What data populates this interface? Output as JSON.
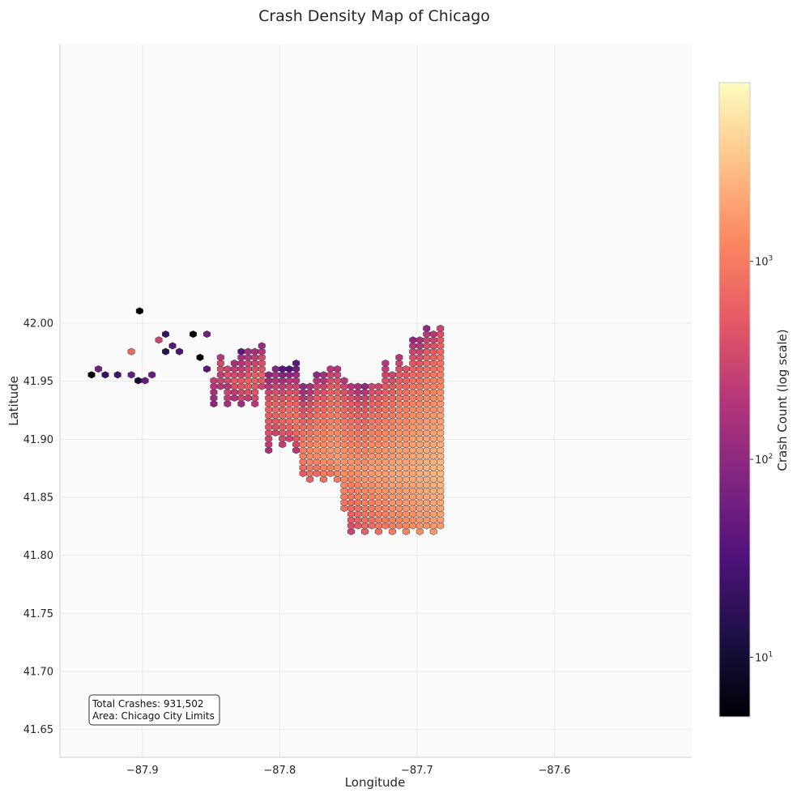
{
  "chart_data": {
    "type": "heatmap",
    "subtype": "hexbin",
    "title": "Crash Density Map of Chicago",
    "xlabel": "Longitude",
    "ylabel": "Latitude",
    "xlim": [
      -87.96,
      -87.5
    ],
    "ylim": [
      41.626,
      42.24
    ],
    "x_ticks": [
      -87.9,
      -87.8,
      -87.7,
      -87.6
    ],
    "x_tick_labels": [
      "−87.9",
      "−87.8",
      "−87.7",
      "−87.6"
    ],
    "y_ticks": [
      41.65,
      41.7,
      41.75,
      41.8,
      41.85,
      41.9,
      41.95,
      42.0
    ],
    "y_tick_labels": [
      "41.65",
      "41.70",
      "41.75",
      "41.80",
      "41.85",
      "41.90",
      "41.95",
      "42.00"
    ],
    "grid": true,
    "colormap": "magma",
    "color_scale": "log",
    "colorbar": {
      "label": "Crash Count (log scale)",
      "range": [
        5,
        8000
      ],
      "ticks": [
        10,
        100,
        1000
      ],
      "tick_bases": [
        "10",
        "10",
        "10"
      ],
      "tick_exps": [
        "1",
        "2",
        "3"
      ]
    },
    "annotation": {
      "line1": "Total Crashes: 931,502",
      "line2": "Area: Chicago City Limits"
    },
    "hex_columns": [
      {
        "x": -87.937,
        "y_start": 41.9555,
        "counts": [
          5
        ]
      },
      {
        "x": -87.932,
        "y_start": 41.9605,
        "counts": [
          60
        ]
      },
      {
        "x": -87.927,
        "y_start": 41.9555,
        "counts": [
          20
        ]
      },
      {
        "x": -87.918,
        "y_start": 41.9555,
        "counts": [
          25
        ]
      },
      {
        "x": -87.908,
        "y_start": 41.9555,
        "counts": [
          50
        ]
      },
      {
        "x": -87.908,
        "y_start": 41.9755,
        "counts": [
          700
        ]
      },
      {
        "x": -87.903,
        "y_start": 41.9505,
        "counts": [
          10
        ]
      },
      {
        "x": -87.902,
        "y_start": 42.0105,
        "counts": [
          5
        ]
      },
      {
        "x": -87.898,
        "y_start": 41.9505,
        "counts": [
          50
        ]
      },
      {
        "x": -87.893,
        "y_start": 41.9555,
        "counts": [
          50
        ]
      },
      {
        "x": -87.888,
        "y_start": 41.9855,
        "counts": [
          300
        ]
      },
      {
        "x": -87.883,
        "y_start": 41.9755,
        "counts": [
          15
        ]
      },
      {
        "x": -87.883,
        "y_start": 41.9905,
        "counts": [
          20
        ]
      },
      {
        "x": -87.878,
        "y_start": 41.9805,
        "counts": [
          40
        ]
      },
      {
        "x": -87.873,
        "y_start": 41.9755,
        "counts": [
          30
        ]
      },
      {
        "x": -87.863,
        "y_start": 41.9905,
        "counts": [
          5
        ]
      },
      {
        "x": -87.858,
        "y_start": 41.9705,
        "counts": [
          5
        ]
      },
      {
        "x": -87.853,
        "y_start": 41.9905,
        "counts": [
          60
        ]
      },
      {
        "x": -87.853,
        "y_start": 41.9605,
        "counts": [
          40
        ]
      },
      {
        "x": -87.848,
        "y_start": 41.9305,
        "counts": [
          90,
          120,
          150,
          200,
          250
        ]
      },
      {
        "x": -87.843,
        "y_start": 41.9455,
        "counts": [
          200,
          300,
          250,
          400,
          350,
          200
        ]
      },
      {
        "x": -87.838,
        "y_start": 41.9305,
        "counts": [
          150,
          250,
          300,
          200,
          350,
          400,
          300
        ]
      },
      {
        "x": -87.833,
        "y_start": 41.9355,
        "counts": [
          180,
          220,
          400,
          500,
          350,
          250,
          150
        ]
      },
      {
        "x": -87.828,
        "y_start": 41.9305,
        "counts": [
          120,
          300,
          350,
          450,
          500,
          300,
          250,
          200,
          150,
          40
        ]
      },
      {
        "x": -87.823,
        "y_start": 41.9355,
        "counts": [
          250,
          400,
          500,
          600,
          450,
          350,
          300,
          200,
          150
        ]
      },
      {
        "x": -87.818,
        "y_start": 41.9305,
        "counts": [
          200,
          350,
          450,
          500,
          600,
          550,
          400,
          300,
          250,
          150
        ]
      },
      {
        "x": -87.813,
        "y_start": 41.9455,
        "counts": [
          300,
          500,
          600,
          450,
          400,
          350,
          200,
          120
        ]
      },
      {
        "x": -87.808,
        "y_start": 41.8905,
        "counts": [
          150,
          250,
          300,
          400,
          450,
          500,
          550,
          600,
          500,
          400,
          300,
          200,
          150,
          100
        ]
      },
      {
        "x": -87.803,
        "y_start": 41.9055,
        "counts": [
          300,
          400,
          500,
          600,
          700,
          600,
          500,
          400,
          300,
          200,
          150,
          80
        ]
      },
      {
        "x": -87.798,
        "y_start": 41.8955,
        "counts": [
          250,
          350,
          450,
          550,
          650,
          700,
          600,
          550,
          450,
          350,
          250,
          150,
          80,
          40
        ]
      },
      {
        "x": -87.793,
        "y_start": 41.9005,
        "counts": [
          300,
          450,
          600,
          700,
          800,
          750,
          650,
          500,
          400,
          300,
          200,
          100,
          30
        ]
      },
      {
        "x": -87.788,
        "y_start": 41.8905,
        "counts": [
          200,
          350,
          500,
          650,
          800,
          900,
          850,
          700,
          600,
          500,
          400,
          300,
          200,
          120,
          60,
          40
        ]
      },
      {
        "x": -87.783,
        "y_start": 41.8705,
        "counts": [
          500,
          700,
          900,
          1000,
          1100,
          1000,
          900,
          800,
          700,
          600,
          500,
          400,
          300,
          200,
          150,
          100
        ]
      },
      {
        "x": -87.778,
        "y_start": 41.8655,
        "counts": [
          600,
          800,
          1000,
          1200,
          1300,
          1200,
          1100,
          1000,
          900,
          800,
          700,
          600,
          500,
          400,
          300,
          200,
          150
        ]
      },
      {
        "x": -87.773,
        "y_start": 41.8705,
        "counts": [
          700,
          900,
          1100,
          1300,
          1400,
          1300,
          1200,
          1100,
          1000,
          900,
          800,
          700,
          600,
          500,
          400,
          300,
          200,
          100
        ]
      },
      {
        "x": -87.768,
        "y_start": 41.8655,
        "counts": [
          800,
          1000,
          1200,
          1400,
          1500,
          1400,
          1300,
          1200,
          1100,
          1000,
          900,
          800,
          700,
          600,
          500,
          400,
          300,
          200,
          150
        ]
      },
      {
        "x": -87.763,
        "y_start": 41.8705,
        "counts": [
          900,
          1100,
          1300,
          1500,
          1600,
          1500,
          1400,
          1300,
          1200,
          1100,
          1000,
          900,
          800,
          700,
          600,
          500,
          400,
          300,
          200
        ]
      },
      {
        "x": -87.758,
        "y_start": 41.8655,
        "counts": [
          1000,
          1200,
          1400,
          1600,
          1700,
          1600,
          1500,
          1400,
          1300,
          1200,
          1100,
          1000,
          900,
          800,
          700,
          600,
          500,
          400,
          300,
          200
        ]
      },
      {
        "x": -87.753,
        "y_start": 41.8405,
        "counts": [
          800,
          900,
          1000,
          1100,
          1200,
          1300,
          1400,
          1500,
          1600,
          1500,
          1400,
          1300,
          1200,
          1100,
          1000,
          900,
          800,
          700,
          600,
          500,
          400,
          300,
          200
        ]
      },
      {
        "x": -87.748,
        "y_start": 41.8205,
        "counts": [
          300,
          400,
          500,
          600,
          700,
          800,
          900,
          1000,
          1100,
          1200,
          1300,
          1400,
          1500,
          1400,
          1300,
          1200,
          1100,
          1000,
          900,
          800,
          700,
          600,
          500,
          400,
          300,
          200
        ]
      },
      {
        "x": -87.743,
        "y_start": 41.8255,
        "counts": [
          500,
          600,
          700,
          800,
          900,
          1000,
          1100,
          1200,
          1300,
          1400,
          1500,
          1400,
          1300,
          1200,
          1100,
          1000,
          900,
          800,
          700,
          600,
          500,
          400,
          300,
          200,
          150
        ]
      },
      {
        "x": -87.738,
        "y_start": 41.8205,
        "counts": [
          600,
          700,
          800,
          900,
          1000,
          1100,
          1200,
          1300,
          1400,
          1500,
          1600,
          1500,
          1400,
          1300,
          1200,
          1100,
          1000,
          900,
          800,
          700,
          600,
          500,
          400,
          300,
          200,
          100
        ]
      },
      {
        "x": -87.733,
        "y_start": 41.8255,
        "counts": [
          700,
          800,
          900,
          1000,
          1100,
          1200,
          1300,
          1400,
          1500,
          1600,
          1700,
          1600,
          1500,
          1400,
          1300,
          1200,
          1100,
          1000,
          900,
          800,
          700,
          600,
          500,
          400,
          300
        ]
      },
      {
        "x": -87.728,
        "y_start": 41.8205,
        "counts": [
          800,
          900,
          1000,
          1100,
          1200,
          1300,
          1400,
          1500,
          1600,
          1700,
          1800,
          1700,
          1600,
          1500,
          1400,
          1300,
          1200,
          1100,
          1000,
          900,
          800,
          700,
          600,
          500,
          400,
          300
        ]
      },
      {
        "x": -87.723,
        "y_start": 41.8255,
        "counts": [
          900,
          1000,
          1100,
          1200,
          1300,
          1400,
          1500,
          1600,
          1700,
          1800,
          1900,
          1800,
          1700,
          1600,
          1500,
          1400,
          1300,
          1200,
          1100,
          1000,
          900,
          800,
          700,
          600,
          500,
          400,
          300,
          250,
          200
        ]
      },
      {
        "x": -87.718,
        "y_start": 41.8205,
        "counts": [
          1000,
          1100,
          1200,
          1300,
          1400,
          1500,
          1600,
          1700,
          1800,
          1900,
          2000,
          1900,
          1800,
          1700,
          1600,
          1500,
          1400,
          1300,
          1200,
          1100,
          1000,
          900,
          800,
          700,
          600,
          500,
          400,
          300
        ]
      },
      {
        "x": -87.713,
        "y_start": 41.8255,
        "counts": [
          1100,
          1200,
          1300,
          1400,
          1500,
          1600,
          1700,
          1800,
          1900,
          2000,
          2100,
          2000,
          1900,
          1800,
          1700,
          1600,
          1500,
          1400,
          1300,
          1200,
          1100,
          1000,
          900,
          800,
          700,
          600,
          500,
          400,
          300,
          200
        ]
      },
      {
        "x": -87.708,
        "y_start": 41.8205,
        "counts": [
          1200,
          1300,
          1400,
          1500,
          1600,
          1700,
          1800,
          1900,
          2000,
          2100,
          2200,
          2100,
          2000,
          1900,
          1800,
          1700,
          1600,
          1500,
          1400,
          1300,
          1200,
          1100,
          1000,
          900,
          800,
          700,
          600,
          500,
          400
        ]
      },
      {
        "x": -87.703,
        "y_start": 41.8255,
        "counts": [
          1300,
          1400,
          1500,
          1600,
          1700,
          1800,
          1900,
          2000,
          2100,
          2200,
          2300,
          2200,
          2100,
          2000,
          1900,
          1800,
          1700,
          1600,
          1500,
          1400,
          1300,
          1200,
          1100,
          1000,
          900,
          800,
          700,
          600,
          500,
          400,
          300,
          200,
          100
        ]
      },
      {
        "x": -87.698,
        "y_start": 41.8205,
        "counts": [
          1400,
          1500,
          1600,
          1700,
          1800,
          1900,
          2000,
          2100,
          2200,
          2300,
          2400,
          2300,
          2200,
          2100,
          2000,
          1900,
          1800,
          1700,
          1600,
          1500,
          1400,
          1300,
          1200,
          1100,
          1000,
          900,
          800,
          700,
          600,
          500,
          400,
          300,
          200,
          150
        ]
      },
      {
        "x": -87.693,
        "y_start": 41.8255,
        "counts": [
          1500,
          1600,
          1700,
          1800,
          1900,
          2000,
          2100,
          2200,
          2300,
          2400,
          2500,
          2400,
          2300,
          2200,
          2100,
          2000,
          1900,
          1800,
          1700,
          1600,
          1500,
          1400,
          1300,
          1200,
          1100,
          1000,
          900,
          800,
          700,
          600,
          500,
          400,
          300,
          200,
          100
        ]
      },
      {
        "x": -87.688,
        "y_start": 41.8205,
        "counts": [
          1600,
          1700,
          1800,
          1900,
          2000,
          2100,
          2200,
          2300,
          2400,
          2500,
          2600,
          2500,
          2400,
          2300,
          2200,
          2100,
          2000,
          1900,
          1800,
          1700,
          1600,
          1500,
          1400,
          1300,
          1200,
          1100,
          1000,
          900,
          800,
          700,
          600,
          500,
          400,
          300,
          200
        ]
      },
      {
        "x": -87.683,
        "y_start": 41.8255,
        "counts": [
          1700,
          1800,
          1900,
          2000,
          2100,
          2200,
          2300,
          2400,
          2500,
          2600,
          2700,
          2600,
          2500,
          2400,
          2300,
          2200,
          2100,
          2000,
          1900,
          1800,
          1700,
          1600,
          1500,
          1400,
          1300,
          1200,
          1100,
          1000,
          900,
          800,
          700,
          600,
          500,
          400,
          300
        ]
      }
    ]
  }
}
